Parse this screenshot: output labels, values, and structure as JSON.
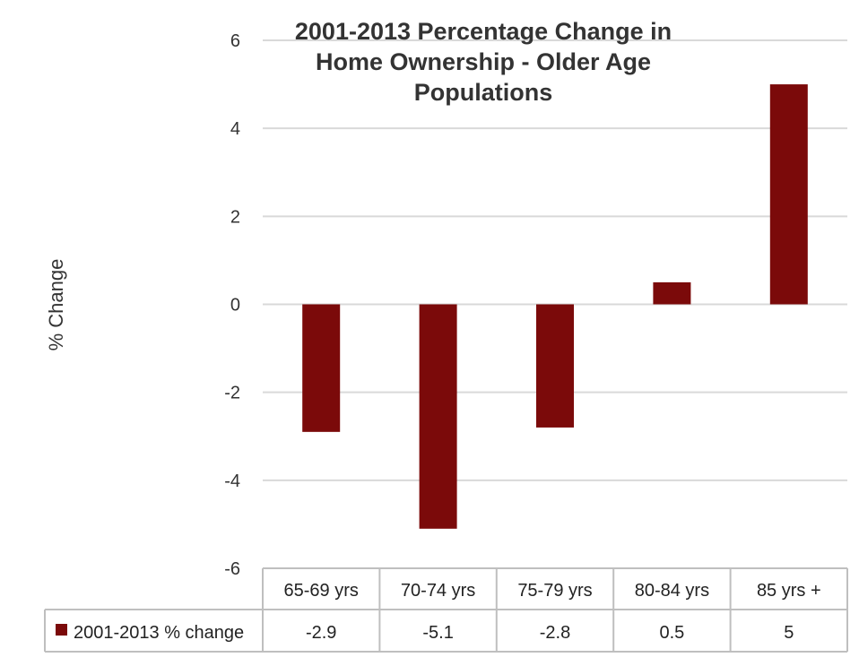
{
  "chart_data": {
    "type": "bar",
    "title_lines": [
      "2001-2013 Percentage Change in",
      "Home Ownership - Older Age",
      "Populations"
    ],
    "ylabel": "% Change",
    "categories": [
      "65-69 yrs",
      "70-74 yrs",
      "75-79 yrs",
      "80-84 yrs",
      "85 yrs +"
    ],
    "series": [
      {
        "name": "2001-2013 % change",
        "values": [
          -2.9,
          -5.1,
          -2.8,
          0.5,
          5
        ],
        "value_labels": [
          "-2.9",
          "-5.1",
          "-2.8",
          "0.5",
          "5"
        ],
        "color": "#7b0a0a"
      }
    ],
    "ylim": [
      -6,
      6
    ],
    "yticks": [
      6,
      4,
      2,
      0,
      -2,
      -4,
      -6
    ],
    "grid": true,
    "legend": "data-table",
    "gridline_color": "#d9d9d9",
    "table_border_color": "#bfbfbf"
  }
}
